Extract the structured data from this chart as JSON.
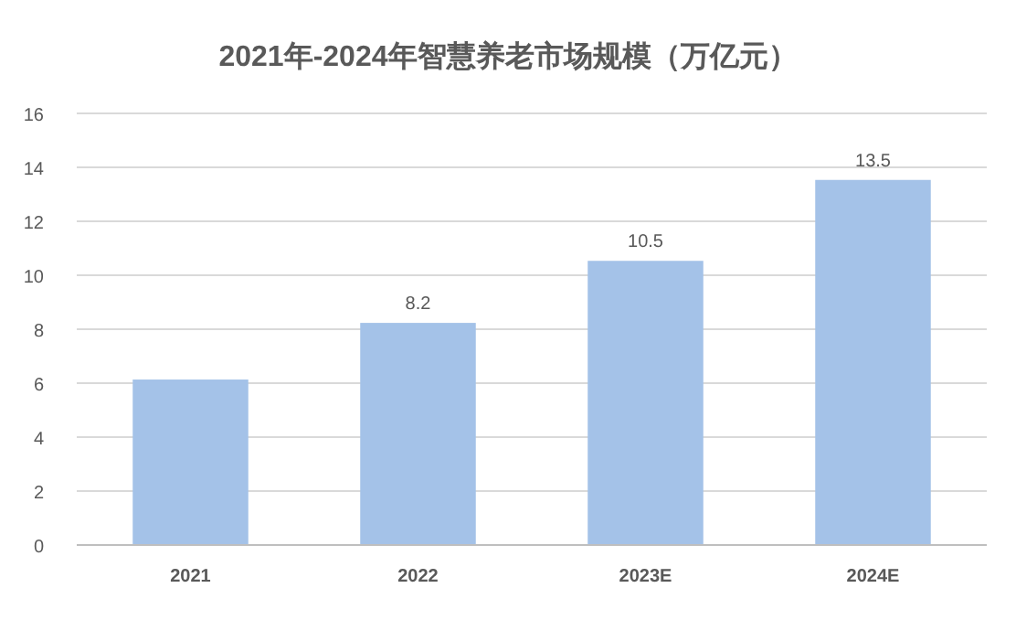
{
  "chart_data": {
    "type": "bar",
    "title": "2021年-2024年智慧养老市场规模（万亿元）",
    "categories": [
      "2021",
      "2022",
      "2023E",
      "2024E"
    ],
    "values": [
      6.1,
      8.2,
      10.5,
      13.5
    ],
    "value_labels": [
      null,
      "8.2",
      "10.5",
      "13.5"
    ],
    "color": "#a4c2e8",
    "ylim": [
      0,
      16
    ],
    "yticks": [
      0,
      2,
      4,
      6,
      8,
      10,
      12,
      14,
      16
    ],
    "grid": "y"
  }
}
